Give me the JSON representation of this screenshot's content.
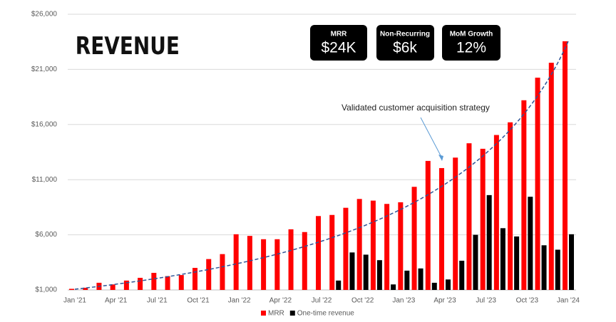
{
  "title": "REVENUE",
  "kpis": [
    {
      "label": "MRR",
      "value": "$24K"
    },
    {
      "label": "Non-Recurring",
      "value": "$6k"
    },
    {
      "label": "MoM Growth",
      "value": "12%"
    }
  ],
  "chart_data": {
    "type": "bar",
    "annotation": "Validated customer acquisition strategy",
    "categories": [
      "Jan '21",
      null,
      null,
      "Apr '21",
      null,
      null,
      "Jul '21",
      null,
      null,
      "Oct '21",
      null,
      null,
      "Jan '22",
      null,
      null,
      "Apr '22",
      null,
      null,
      "Jul '22",
      null,
      null,
      "Oct '22",
      null,
      null,
      "Jan '23",
      null,
      null,
      "Apr '23",
      null,
      null,
      "Jul '23",
      null,
      null,
      "Oct '23",
      null,
      null,
      "Jan '24"
    ],
    "series": [
      {
        "name": "MRR",
        "color": "#ff0000",
        "values": [
          1100,
          1200,
          1650,
          1500,
          1850,
          2100,
          2550,
          2250,
          2350,
          3000,
          3800,
          4250,
          6050,
          5900,
          5600,
          5600,
          6500,
          6250,
          7700,
          7800,
          8450,
          9250,
          9100,
          8800,
          8950,
          10350,
          12700,
          12050,
          13000,
          14300,
          13800,
          15050,
          16200,
          18200,
          20250,
          21600,
          23550
        ]
      },
      {
        "name": "One-time revenue",
        "color": "#000000",
        "values": [
          null,
          null,
          null,
          null,
          null,
          null,
          null,
          null,
          null,
          null,
          null,
          null,
          null,
          null,
          null,
          null,
          null,
          null,
          null,
          1850,
          4400,
          4200,
          3700,
          1500,
          2750,
          2950,
          1650,
          1950,
          3650,
          6000,
          9600,
          6600,
          5850,
          9450,
          5050,
          4650,
          6050
        ]
      }
    ],
    "ylim": [
      1000,
      26000
    ],
    "yticks": [
      {
        "value": 1000,
        "label": "$1,000"
      },
      {
        "value": 6000,
        "label": "$6,000"
      },
      {
        "value": 11000,
        "label": "$11,000"
      },
      {
        "value": 16000,
        "label": "$16,000"
      },
      {
        "value": 21000,
        "label": "$21,000"
      },
      {
        "value": 26000,
        "label": "$26,000"
      }
    ],
    "grid": true,
    "legend": "bottom"
  }
}
